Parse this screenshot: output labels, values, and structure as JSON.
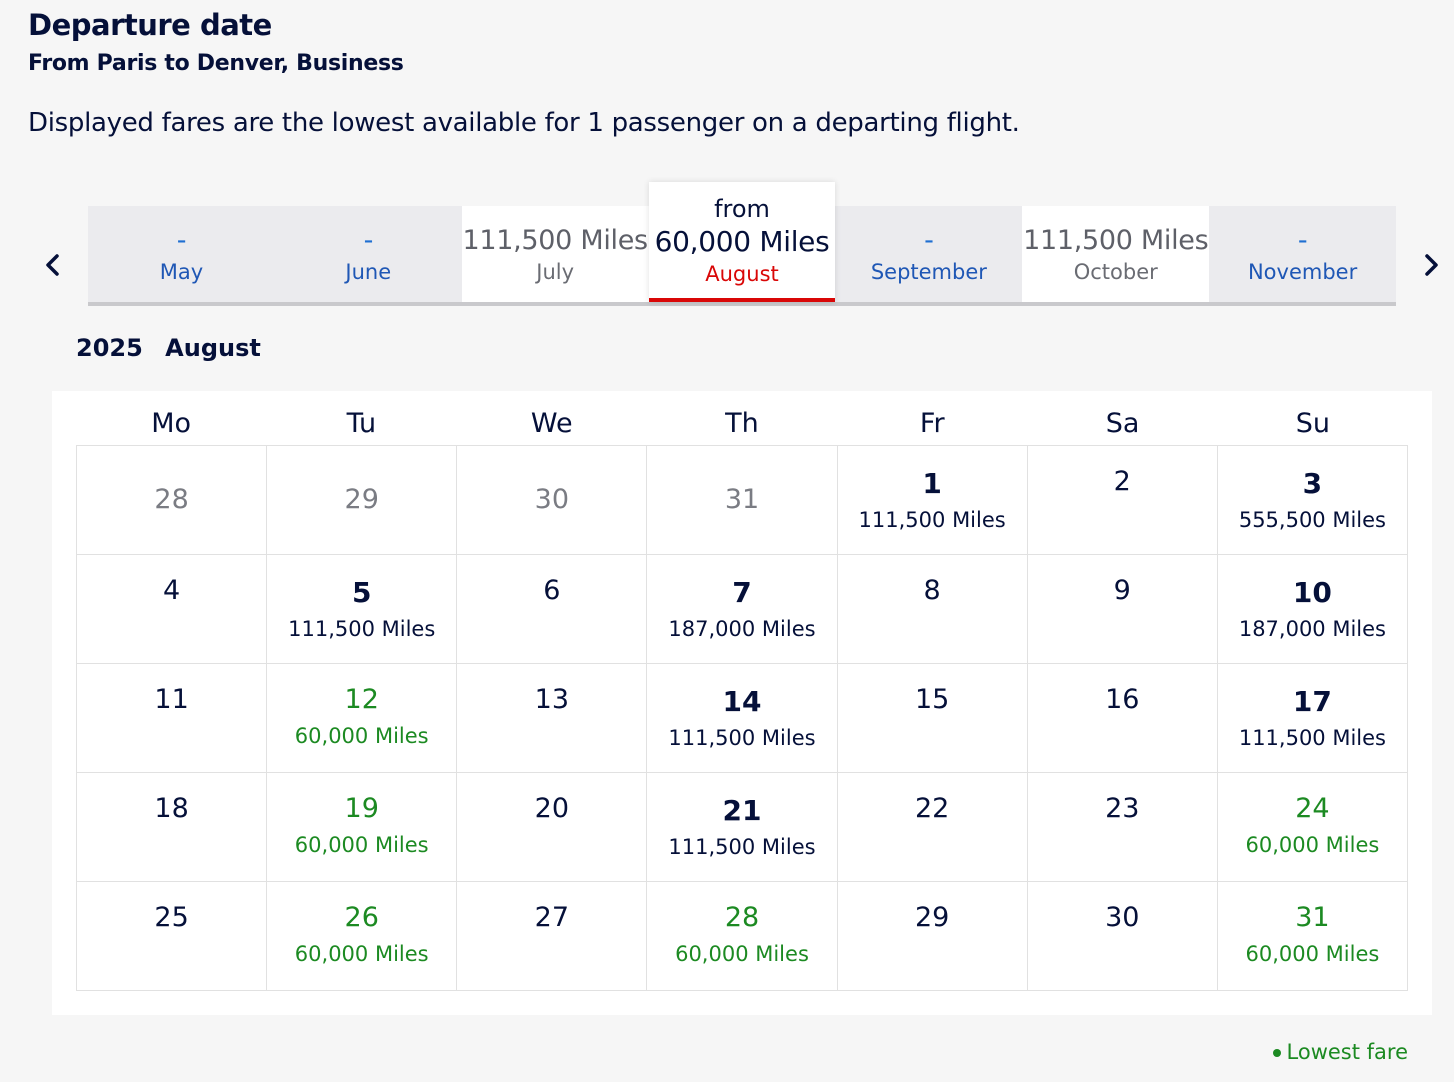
{
  "header": {
    "title": "Departure date",
    "subtitle": "From Paris to Denver, Business",
    "description": "Displayed fares are the lowest available for 1 passenger on a departing flight."
  },
  "months": [
    {
      "price": "-",
      "name": "May",
      "state": "empty"
    },
    {
      "price": "-",
      "name": "June",
      "state": "empty"
    },
    {
      "price": "111,500 Miles",
      "name": "July",
      "state": "priced"
    },
    {
      "from": "from",
      "price": "60,000 Miles",
      "name": "August",
      "state": "active"
    },
    {
      "price": "-",
      "name": "September",
      "state": "empty"
    },
    {
      "price": "111,500 Miles",
      "name": "October",
      "state": "priced"
    },
    {
      "price": "-",
      "name": "November",
      "state": "empty"
    }
  ],
  "calendar": {
    "year": "2025",
    "month": "August",
    "weekdays": [
      "Mo",
      "Tu",
      "We",
      "Th",
      "Fr",
      "Sa",
      "Su"
    ],
    "cells": [
      {
        "day": "28",
        "type": "other"
      },
      {
        "day": "29",
        "type": "other"
      },
      {
        "day": "30",
        "type": "other"
      },
      {
        "day": "31",
        "type": "other"
      },
      {
        "day": "1",
        "fare": "111,500 Miles",
        "type": "fare"
      },
      {
        "day": "2",
        "type": "plain"
      },
      {
        "day": "3",
        "fare": "555,500 Miles",
        "type": "fare"
      },
      {
        "day": "4",
        "type": "plain"
      },
      {
        "day": "5",
        "fare": "111,500 Miles",
        "type": "fare"
      },
      {
        "day": "6",
        "type": "plain"
      },
      {
        "day": "7",
        "fare": "187,000 Miles",
        "type": "fare"
      },
      {
        "day": "8",
        "type": "plain"
      },
      {
        "day": "9",
        "type": "plain"
      },
      {
        "day": "10",
        "fare": "187,000 Miles",
        "type": "fare"
      },
      {
        "day": "11",
        "type": "plain"
      },
      {
        "day": "12",
        "fare": "60,000 Miles",
        "type": "low"
      },
      {
        "day": "13",
        "type": "plain"
      },
      {
        "day": "14",
        "fare": "111,500 Miles",
        "type": "fare"
      },
      {
        "day": "15",
        "type": "plain"
      },
      {
        "day": "16",
        "type": "plain"
      },
      {
        "day": "17",
        "fare": "111,500 Miles",
        "type": "fare"
      },
      {
        "day": "18",
        "type": "plain"
      },
      {
        "day": "19",
        "fare": "60,000 Miles",
        "type": "low"
      },
      {
        "day": "20",
        "type": "plain"
      },
      {
        "day": "21",
        "fare": "111,500 Miles",
        "type": "fare"
      },
      {
        "day": "22",
        "type": "plain"
      },
      {
        "day": "23",
        "type": "plain"
      },
      {
        "day": "24",
        "fare": "60,000 Miles",
        "type": "low"
      },
      {
        "day": "25",
        "type": "plain"
      },
      {
        "day": "26",
        "fare": "60,000 Miles",
        "type": "low"
      },
      {
        "day": "27",
        "type": "plain"
      },
      {
        "day": "28",
        "fare": "60,000 Miles",
        "type": "low"
      },
      {
        "day": "29",
        "type": "plain"
      },
      {
        "day": "30",
        "type": "plain"
      },
      {
        "day": "31",
        "fare": "60,000 Miles",
        "type": "low"
      }
    ]
  },
  "legend": {
    "label": "Lowest fare"
  },
  "icons": {
    "prev": "chevron-left-icon",
    "next": "chevron-right-icon"
  },
  "colors": {
    "accent_red": "#d90707",
    "lowest_green": "#1c8a22",
    "navy": "#051039",
    "link_blue": "#1f57b5"
  }
}
